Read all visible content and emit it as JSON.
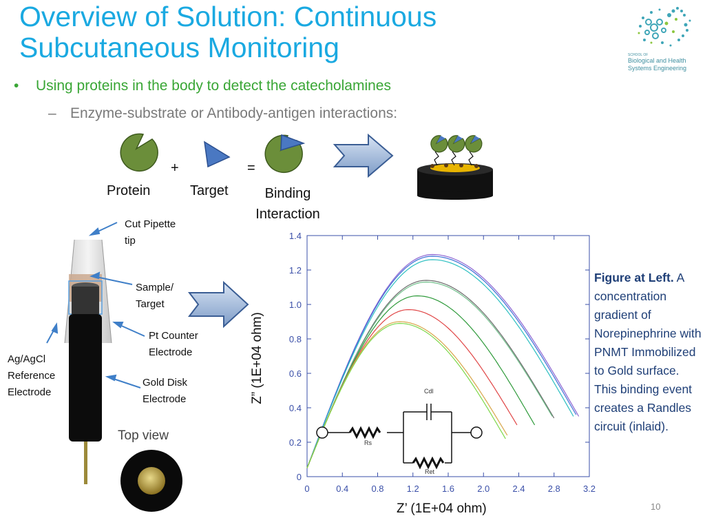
{
  "slide": {
    "title_line1": "Overview of Solution: Continuous",
    "title_line2": "Subcutaneous Monitoring",
    "bullet1": "Using proteins in the body to detect the catecholamines",
    "bullet2": "Enzyme-substrate or Antibody-antigen interactions:",
    "bullet_marker": "•",
    "dash_marker": "–",
    "page_number": "10"
  },
  "logo": {
    "line1": "SCHOOL OF",
    "line2": "Biological and Health",
    "line3": "Systems Engineering",
    "color": "#3f8fa0"
  },
  "binding": {
    "plus": "+",
    "equals": "=",
    "protein_label": "Protein",
    "target_label": "Target",
    "binding_label_1": "Binding",
    "binding_label_2": "Interaction"
  },
  "electrode": {
    "cut_pipette_1": "Cut Pipette",
    "cut_pipette_2": "tip",
    "sample_1": "Sample/",
    "sample_2": "Target",
    "pt_counter_1": "Pt Counter",
    "pt_counter_2": "Electrode",
    "ref_1": "Ag/AgCl",
    "ref_2": "Reference",
    "ref_3": "Electrode",
    "gold_disk_1": "Gold Disk",
    "gold_disk_2": "Electrode",
    "top_view": "Top view"
  },
  "caption": {
    "bold": "Figure at Left.",
    "text": "A concentration gradient of Norepinephrine with PNMT Immobilized to Gold surface. This binding event creates a Randles circuit (inlaid)."
  },
  "circuit": {
    "cdl": "Cdl",
    "rs": "Rs",
    "ret": "Ret"
  },
  "colors": {
    "title": "#1aa9e1",
    "bullet1": "#39a635",
    "bullet2": "#7a7a7a",
    "protein_fill": "#6b8e3a",
    "target_fill": "#4a78c2",
    "caption": "#1f3f77",
    "axis": "#3a4fa8"
  },
  "chart_data": {
    "type": "line",
    "xlabel": "Z’ (1E+04 ohm)",
    "ylabel": "Z” (1E+04 ohm)",
    "xlim": [
      0,
      3.2
    ],
    "ylim": [
      0,
      1.4
    ],
    "xticks": [
      "0",
      "0.4",
      "0.8",
      "1.2",
      "1.6",
      "2.0",
      "2.4",
      "2.8",
      "3.2"
    ],
    "yticks": [
      "0",
      "0.2",
      "0.4",
      "0.6",
      "0.8",
      "1.0",
      "1.2",
      "1.4"
    ],
    "series": [
      {
        "color": "#8c64d2",
        "peak_x": 1.42,
        "peak_y": 1.29,
        "end_x": 3.08,
        "end_y": 0.35
      },
      {
        "color": "#3b6fd6",
        "peak_x": 1.42,
        "peak_y": 1.28,
        "end_x": 3.05,
        "end_y": 0.36
      },
      {
        "color": "#2bbfc0",
        "peak_x": 1.42,
        "peak_y": 1.26,
        "end_x": 3.02,
        "end_y": 0.35
      },
      {
        "color": "#6a6a6a",
        "peak_x": 1.35,
        "peak_y": 1.14,
        "end_x": 2.8,
        "end_y": 0.34
      },
      {
        "color": "#6fbf8a",
        "peak_x": 1.35,
        "peak_y": 1.13,
        "end_x": 2.78,
        "end_y": 0.35
      },
      {
        "color": "#2e9a3a",
        "peak_x": 1.25,
        "peak_y": 1.05,
        "end_x": 2.58,
        "end_y": 0.3
      },
      {
        "color": "#e04545",
        "peak_x": 1.15,
        "peak_y": 0.97,
        "end_x": 2.38,
        "end_y": 0.3
      },
      {
        "color": "#d8a64a",
        "peak_x": 1.05,
        "peak_y": 0.9,
        "end_x": 2.27,
        "end_y": 0.24
      },
      {
        "color": "#7dd84a",
        "peak_x": 1.05,
        "peak_y": 0.89,
        "end_x": 2.25,
        "end_y": 0.22
      }
    ]
  }
}
